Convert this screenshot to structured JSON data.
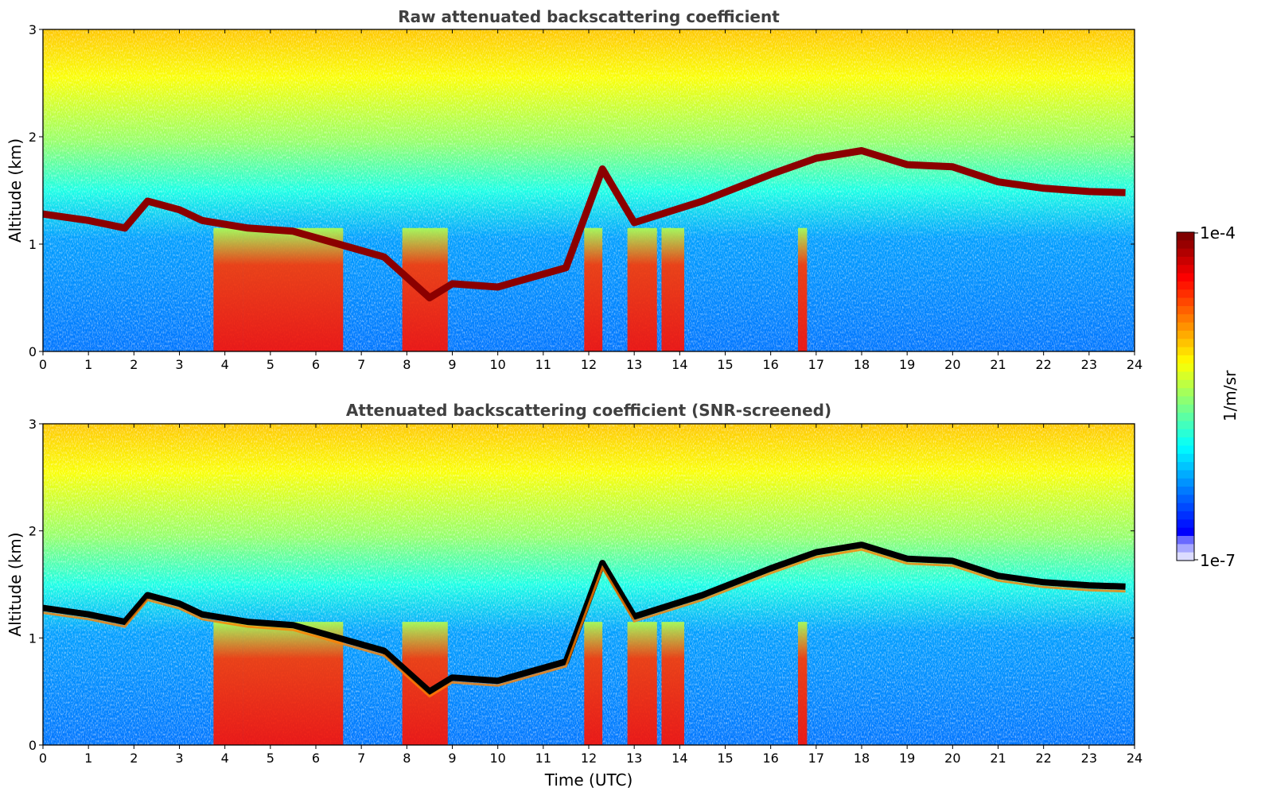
{
  "chart_data": [
    {
      "type": "heatmap",
      "title": "Raw attenuated backscattering coefficient",
      "xlabel": "",
      "ylabel": "Altitude (km)",
      "xlim": [
        0,
        24
      ],
      "ylim": [
        0,
        3
      ],
      "x_ticks": [
        "0",
        "1",
        "2",
        "3",
        "4",
        "5",
        "6",
        "7",
        "8",
        "9",
        "10",
        "11",
        "12",
        "13",
        "14",
        "15",
        "16",
        "17",
        "18",
        "19",
        "20",
        "21",
        "22",
        "23",
        "24"
      ],
      "y_ticks": [
        "0",
        "1",
        "2",
        "3"
      ],
      "color_scale": "log",
      "colormap": "jet",
      "cloud_base_km": [
        {
          "time": 0.0,
          "alt": 1.28
        },
        {
          "time": 1.0,
          "alt": 1.22
        },
        {
          "time": 1.8,
          "alt": 1.15
        },
        {
          "time": 2.3,
          "alt": 1.4
        },
        {
          "time": 3.0,
          "alt": 1.32
        },
        {
          "time": 3.5,
          "alt": 1.22
        },
        {
          "time": 4.5,
          "alt": 1.15
        },
        {
          "time": 5.5,
          "alt": 1.12
        },
        {
          "time": 6.5,
          "alt": 1.0
        },
        {
          "time": 7.5,
          "alt": 0.88
        },
        {
          "time": 8.5,
          "alt": 0.5
        },
        {
          "time": 9.0,
          "alt": 0.63
        },
        {
          "time": 10.0,
          "alt": 0.6
        },
        {
          "time": 11.5,
          "alt": 0.78
        },
        {
          "time": 12.3,
          "alt": 1.7
        },
        {
          "time": 13.0,
          "alt": 1.2
        },
        {
          "time": 14.5,
          "alt": 1.4
        },
        {
          "time": 16.0,
          "alt": 1.65
        },
        {
          "time": 17.0,
          "alt": 1.8
        },
        {
          "time": 18.0,
          "alt": 1.87
        },
        {
          "time": 19.0,
          "alt": 1.74
        },
        {
          "time": 20.0,
          "alt": 1.72
        },
        {
          "time": 21.0,
          "alt": 1.58
        },
        {
          "time": 22.0,
          "alt": 1.52
        },
        {
          "time": 23.0,
          "alt": 1.49
        },
        {
          "time": 23.8,
          "alt": 1.48
        }
      ]
    },
    {
      "type": "heatmap",
      "title": "Attenuated backscattering coefficient (SNR-screened)",
      "xlabel": "Time (UTC)",
      "ylabel": "Altitude (km)",
      "xlim": [
        0,
        24
      ],
      "ylim": [
        0,
        3
      ],
      "x_ticks": [
        "0",
        "1",
        "2",
        "3",
        "4",
        "5",
        "6",
        "7",
        "8",
        "9",
        "10",
        "11",
        "12",
        "13",
        "14",
        "15",
        "16",
        "17",
        "18",
        "19",
        "20",
        "21",
        "22",
        "23",
        "24"
      ],
      "y_ticks": [
        "0",
        "1",
        "2",
        "3"
      ],
      "color_scale": "log",
      "colormap": "jet",
      "cloud_base_km": [
        {
          "time": 0.0,
          "alt": 1.28
        },
        {
          "time": 1.0,
          "alt": 1.22
        },
        {
          "time": 1.8,
          "alt": 1.15
        },
        {
          "time": 2.3,
          "alt": 1.4
        },
        {
          "time": 3.0,
          "alt": 1.32
        },
        {
          "time": 3.5,
          "alt": 1.22
        },
        {
          "time": 4.5,
          "alt": 1.15
        },
        {
          "time": 5.5,
          "alt": 1.12
        },
        {
          "time": 6.5,
          "alt": 1.0
        },
        {
          "time": 7.5,
          "alt": 0.88
        },
        {
          "time": 8.5,
          "alt": 0.5
        },
        {
          "time": 9.0,
          "alt": 0.63
        },
        {
          "time": 10.0,
          "alt": 0.6
        },
        {
          "time": 11.5,
          "alt": 0.78
        },
        {
          "time": 12.3,
          "alt": 1.7
        },
        {
          "time": 13.0,
          "alt": 1.2
        },
        {
          "time": 14.5,
          "alt": 1.4
        },
        {
          "time": 16.0,
          "alt": 1.65
        },
        {
          "time": 17.0,
          "alt": 1.8
        },
        {
          "time": 18.0,
          "alt": 1.87
        },
        {
          "time": 19.0,
          "alt": 1.74
        },
        {
          "time": 20.0,
          "alt": 1.72
        },
        {
          "time": 21.0,
          "alt": 1.58
        },
        {
          "time": 22.0,
          "alt": 1.52
        },
        {
          "time": 23.0,
          "alt": 1.49
        },
        {
          "time": 23.8,
          "alt": 1.48
        }
      ]
    }
  ],
  "colorbar": {
    "label": "1/m/sr",
    "max_label": "1e-4",
    "min_label": "1e-7",
    "colors": [
      "#00007f",
      "#0000ff",
      "#007fff",
      "#00ffff",
      "#7fff7f",
      "#ffff00",
      "#ff7f00",
      "#ff0000",
      "#7f0000"
    ]
  }
}
